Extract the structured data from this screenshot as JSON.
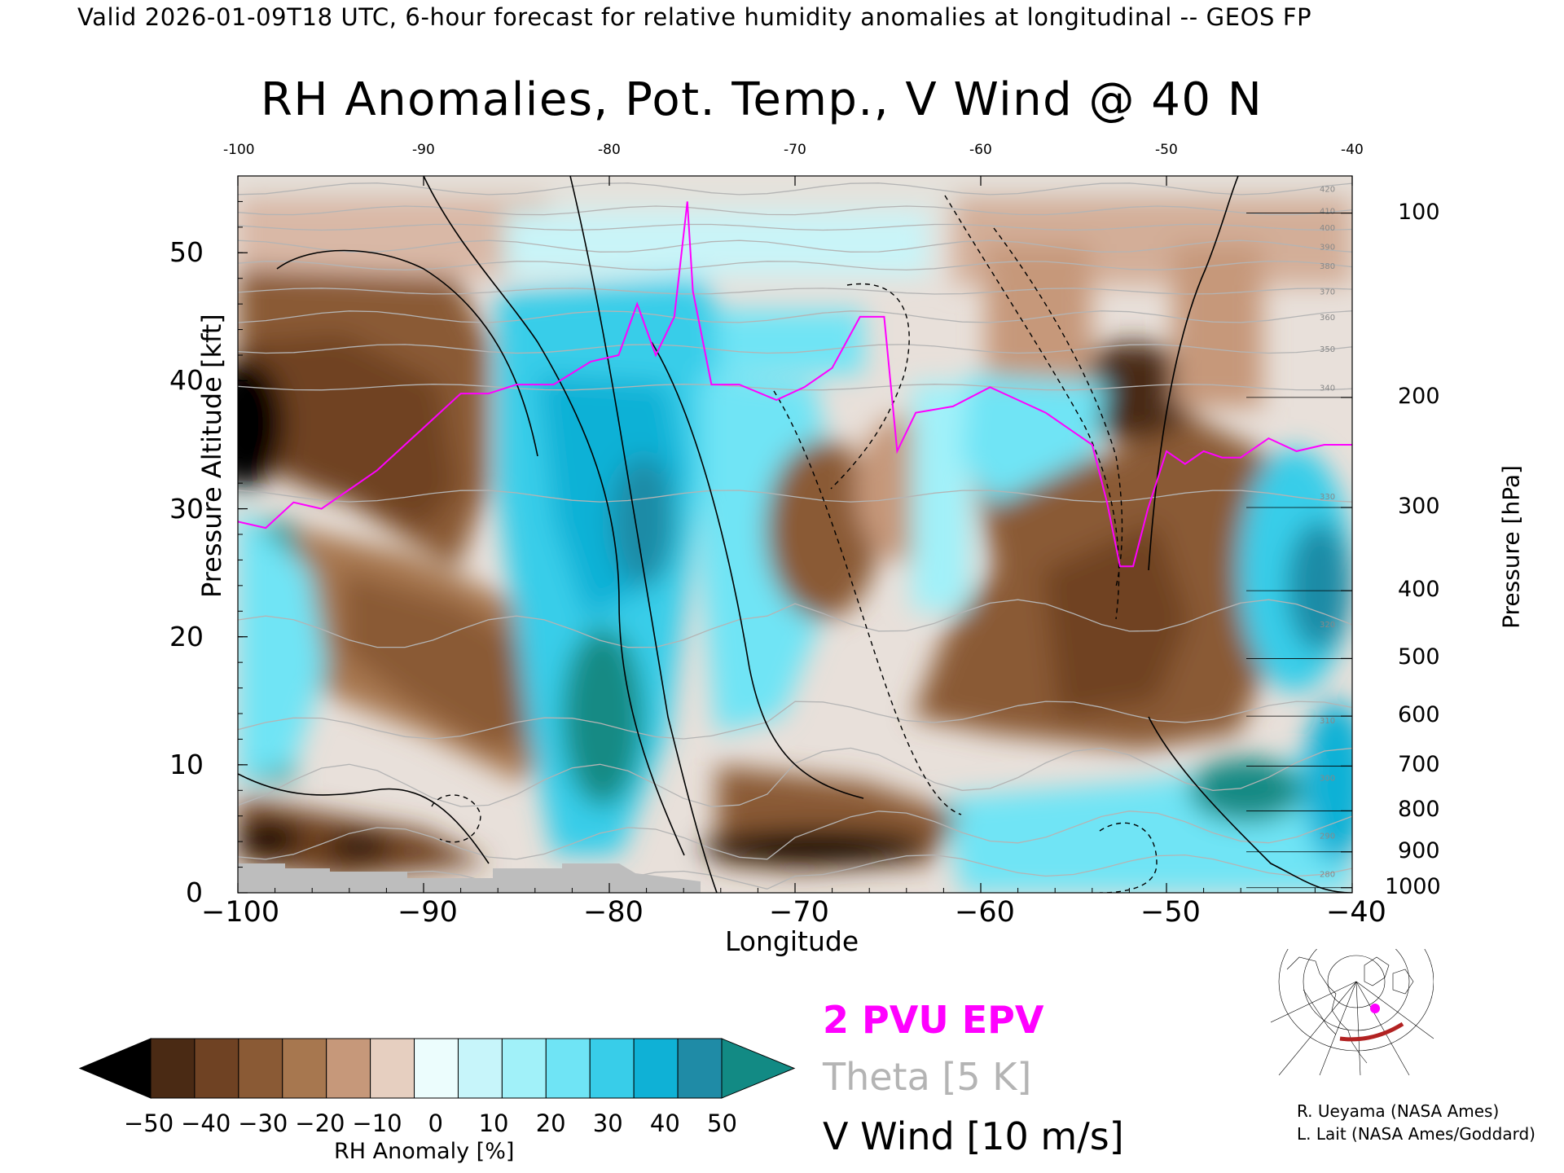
{
  "header": {
    "valid_line": "Valid 2026-01-09T18 UTC, 6-hour forecast for relative humidity anomalies at longitudinal -- GEOS FP",
    "title": "RH Anomalies, Pot. Temp., V Wind @ 40 N"
  },
  "chart_data": {
    "type": "heatmap",
    "title": "RH Anomalies, Pot. Temp., V Wind @ 40 N",
    "xlabel": "Longitude",
    "ylabel": "Pressure Altitude [kft]",
    "y2label": "Pressure [hPa]",
    "xlim": [
      -100,
      -40
    ],
    "ylim": [
      0,
      56
    ],
    "x_ticks": [
      "−100",
      "−90",
      "−80",
      "−70",
      "−60",
      "−50",
      "−40"
    ],
    "x_top_ticks": [
      "-100",
      "-90",
      "-80",
      "-70",
      "-60",
      "-50",
      "-40"
    ],
    "y_ticks": [
      "0",
      "10",
      "20",
      "30",
      "40",
      "50"
    ],
    "pressure_ticks": [
      {
        "label": "100",
        "kft": 53.1
      },
      {
        "label": "200",
        "kft": 38.7
      },
      {
        "label": "300",
        "kft": 30.1
      },
      {
        "label": "400",
        "kft": 23.6
      },
      {
        "label": "500",
        "kft": 18.3
      },
      {
        "label": "600",
        "kft": 13.8
      },
      {
        "label": "700",
        "kft": 9.9
      },
      {
        "label": "800",
        "kft": 6.4
      },
      {
        "label": "900",
        "kft": 3.2
      },
      {
        "label": "1000",
        "kft": 0.4
      }
    ],
    "theta_levels": [
      {
        "label": "280",
        "kft": 1.5
      },
      {
        "label": "290",
        "kft": 4.5
      },
      {
        "label": "300",
        "kft": 9.0
      },
      {
        "label": "310",
        "kft": 13.5
      },
      {
        "label": "320",
        "kft": 21.0
      },
      {
        "label": "330",
        "kft": 31.0
      },
      {
        "label": "340",
        "kft": 39.5
      },
      {
        "label": "350",
        "kft": 42.5
      },
      {
        "label": "360",
        "kft": 45.0
      },
      {
        "label": "370",
        "kft": 47.0
      },
      {
        "label": "380",
        "kft": 49.0
      },
      {
        "label": "390",
        "kft": 50.5
      },
      {
        "label": "400",
        "kft": 52.0
      },
      {
        "label": "410",
        "kft": 53.3
      },
      {
        "label": "420",
        "kft": 55.0
      }
    ],
    "pv2_tropopause": {
      "name": "2 PVU EPV",
      "x": [
        -100,
        -98.5,
        -97,
        -95.5,
        -94,
        -92.5,
        -91,
        -89.5,
        -88,
        -86.5,
        -85,
        -83,
        -81,
        -79.5,
        -78.5,
        -77.5,
        -76.5,
        -75.8,
        -75.5,
        -74.5,
        -73,
        -71,
        -69.5,
        -68,
        -66.5,
        -65.2,
        -64.5,
        -63.5,
        -61.5,
        -59.5,
        -58,
        -56.5,
        -55,
        -54,
        -53.2,
        -52.5,
        -51.8,
        -51,
        -50,
        -49,
        -48,
        -47,
        -46,
        -44.5,
        -43,
        -41.5,
        -40
      ],
      "y": [
        29,
        28.5,
        30.5,
        30,
        31.5,
        33,
        35,
        37,
        39,
        39,
        39.7,
        39.7,
        41.5,
        42,
        46,
        42,
        45,
        54,
        47,
        39.7,
        39.7,
        38.5,
        39.5,
        41,
        45,
        45,
        34.5,
        37.5,
        38,
        39.5,
        38.5,
        37.5,
        36,
        35,
        30.5,
        25.5,
        25.5,
        30,
        34.5,
        33.5,
        34.5,
        34,
        34,
        35.5,
        34.5,
        35,
        35
      ]
    },
    "colorbar": {
      "label": "RH Anomaly [%]",
      "ticks": [
        "−50",
        "−40",
        "−30",
        "−20",
        "−10",
        "0",
        "10",
        "20",
        "30",
        "40",
        "50"
      ],
      "colors": [
        "#000000",
        "#4a2a14",
        "#6f4223",
        "#8a5a35",
        "#a7774f",
        "#c6987a",
        "#e6cfc0",
        "#ecfdfd",
        "#c7f5fa",
        "#a1f1f9",
        "#6fe4f5",
        "#38cde9",
        "#0fb1d6",
        "#1f8ba6",
        "#128a84"
      ]
    },
    "legend": {
      "epv": "2 PVU EPV",
      "theta": "Theta [5 K]",
      "vwind": "V Wind [10 m/s]"
    }
  },
  "credits": {
    "line1": "R. Ueyama (NASA Ames)",
    "line2": "L. Lait (NASA Ames/Goddard)"
  },
  "colors": {
    "epv": "#ff00ff",
    "theta": "#b4b4b4",
    "topography": "#bdbdbd",
    "locator_arc": "#b22222",
    "locator_dot": "#ff00ff"
  },
  "icons": {
    "locator_map": "north-america-polar-map-icon"
  }
}
